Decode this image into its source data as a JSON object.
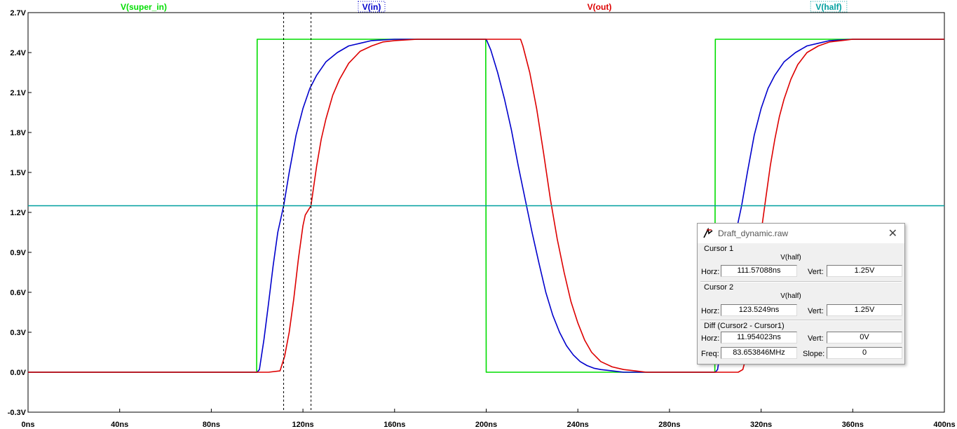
{
  "chart_data": {
    "type": "line",
    "xlabel": "",
    "ylabel": "",
    "xlim": [
      0,
      400
    ],
    "ylim": [
      -0.3,
      2.7
    ],
    "x_ticks": [
      0,
      40,
      80,
      120,
      160,
      200,
      240,
      280,
      320,
      360,
      400
    ],
    "x_tick_labels": [
      "0ns",
      "40ns",
      "80ns",
      "120ns",
      "160ns",
      "200ns",
      "240ns",
      "280ns",
      "320ns",
      "360ns",
      "400ns"
    ],
    "y_ticks": [
      -0.3,
      0,
      0.3,
      0.6,
      0.9,
      1.2,
      1.5,
      1.8,
      2.1,
      2.4,
      2.7
    ],
    "y_tick_labels": [
      "-0.3V",
      "0.0V",
      "0.3V",
      "0.6V",
      "0.9V",
      "1.2V",
      "1.5V",
      "1.8V",
      "2.1V",
      "2.4V",
      "2.7V"
    ],
    "grid": false,
    "legend_position": "top",
    "series": [
      {
        "name": "V(super_in)",
        "color": "#00dd00",
        "x": [
          0,
          99.8,
          100,
          199.8,
          200,
          299.8,
          300,
          400
        ],
        "y": [
          0,
          0,
          2.5,
          2.5,
          0,
          0,
          2.5,
          2.5
        ]
      },
      {
        "name": "V(in)",
        "color": "#0000cc",
        "x": [
          0,
          100,
          101,
          103,
          105,
          107,
          109,
          111.57,
          114,
          117,
          120,
          123,
          126,
          130,
          135,
          140,
          145,
          150,
          160,
          170,
          180,
          190,
          200,
          202,
          205,
          208,
          211,
          214,
          217,
          220,
          223,
          226,
          229,
          232,
          235,
          238,
          241,
          244,
          247,
          250,
          255,
          260,
          270,
          280,
          290,
          298,
          300,
          301,
          303,
          305,
          307,
          309,
          311.5,
          314,
          317,
          320,
          323,
          326,
          330,
          335,
          340,
          345,
          350,
          360,
          370,
          380,
          390,
          400
        ],
        "y": [
          0,
          0,
          0.02,
          0.25,
          0.52,
          0.8,
          1.05,
          1.25,
          1.5,
          1.78,
          1.98,
          2.13,
          2.23,
          2.33,
          2.4,
          2.45,
          2.47,
          2.49,
          2.5,
          2.5,
          2.5,
          2.5,
          2.5,
          2.42,
          2.25,
          2.05,
          1.82,
          1.55,
          1.3,
          1.05,
          0.82,
          0.6,
          0.43,
          0.3,
          0.2,
          0.13,
          0.08,
          0.05,
          0.03,
          0.02,
          0.01,
          0.0,
          0.0,
          0.0,
          0.0,
          0.0,
          0.0,
          0.02,
          0.25,
          0.52,
          0.8,
          1.05,
          1.25,
          1.5,
          1.78,
          1.98,
          2.13,
          2.23,
          2.33,
          2.4,
          2.45,
          2.47,
          2.49,
          2.5,
          2.5,
          2.5,
          2.5,
          2.5
        ]
      },
      {
        "name": "V(out)",
        "color": "#dd0000",
        "x": [
          0,
          105,
          110,
          112,
          114,
          116,
          118,
          120,
          121,
          123.5,
          126,
          128,
          130,
          133,
          136,
          140,
          145,
          150,
          155,
          160,
          170,
          180,
          190,
          200,
          210,
          215,
          216,
          219,
          222,
          225,
          228,
          231,
          234,
          237,
          240,
          243,
          246,
          250,
          255,
          260,
          265,
          270,
          280,
          290,
          300,
          305,
          310,
          312,
          314,
          316,
          318,
          320,
          322,
          324,
          326,
          328,
          330,
          333,
          336,
          340,
          345,
          350,
          355,
          360,
          370,
          380,
          400
        ],
        "y": [
          0,
          0,
          0.01,
          0.12,
          0.3,
          0.55,
          0.85,
          1.1,
          1.18,
          1.25,
          1.55,
          1.75,
          1.9,
          2.08,
          2.2,
          2.32,
          2.41,
          2.45,
          2.48,
          2.49,
          2.5,
          2.5,
          2.5,
          2.5,
          2.5,
          2.5,
          2.45,
          2.25,
          1.98,
          1.65,
          1.3,
          1.0,
          0.75,
          0.53,
          0.37,
          0.24,
          0.15,
          0.08,
          0.04,
          0.02,
          0.01,
          0.0,
          0.0,
          0.0,
          0.0,
          0.0,
          0.0,
          0.02,
          0.15,
          0.4,
          0.72,
          1.05,
          1.3,
          1.55,
          1.75,
          1.92,
          2.05,
          2.2,
          2.31,
          2.4,
          2.45,
          2.48,
          2.49,
          2.5,
          2.5,
          2.5,
          2.5
        ]
      },
      {
        "name": "V(half)",
        "color": "#00a0a0",
        "x": [
          0,
          400
        ],
        "y": [
          1.25,
          1.25
        ]
      }
    ],
    "cursors_x": [
      111.57088,
      123.5249
    ]
  },
  "dialog": {
    "title": "Draft_dynamic.raw",
    "cursor1_label": "Cursor 1",
    "cursor1_trace": "V(half)",
    "cursor2_label": "Cursor 2",
    "cursor2_trace": "V(half)",
    "diff_label": "Diff (Cursor2 - Cursor1)",
    "horz_label": "Horz:",
    "vert_label": "Vert:",
    "freq_label": "Freq:",
    "slope_label": "Slope:",
    "c1_horz": "111.57088ns",
    "c1_vert": "1.25V",
    "c2_horz": "123.5249ns",
    "c2_vert": "1.25V",
    "diff_horz": "11.954023ns",
    "diff_vert": "0V",
    "diff_freq": "83.653846MHz",
    "diff_slope": "0",
    "close_icon": "close-icon",
    "logo_icon": "ltspice-logo-icon"
  }
}
